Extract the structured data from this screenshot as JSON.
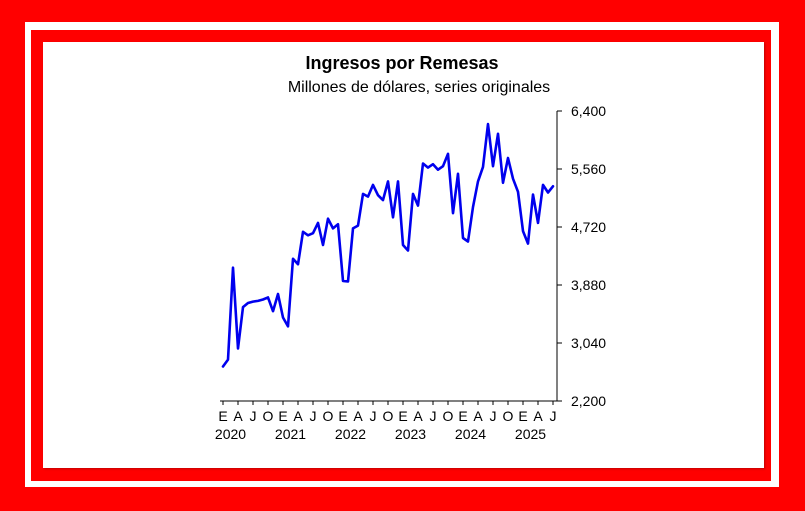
{
  "chart_data": {
    "type": "line",
    "title": "Ingresos por Remesas",
    "subtitle": "Millones de dólares, series originales",
    "xlabel": "",
    "ylabel": "",
    "ylim": [
      2200,
      6400
    ],
    "y_ticks": [
      "2,200",
      "3,040",
      "3,880",
      "4,720",
      "5,560",
      "6,400"
    ],
    "y_tick_values": [
      2200,
      3040,
      3880,
      4720,
      5560,
      6400
    ],
    "y_axis_position": "right",
    "grid": false,
    "legend": "none",
    "line_color": "#0000ee",
    "x_tick_labels": [
      "E",
      "A",
      "J",
      "O",
      "E",
      "A",
      "J",
      "O",
      "E",
      "A",
      "J",
      "O",
      "E",
      "A",
      "J",
      "O",
      "E",
      "A",
      "J",
      "O",
      "E",
      "A",
      "J"
    ],
    "x_year_labels": [
      "2020",
      "2021",
      "2022",
      "2023",
      "2024",
      "2025"
    ],
    "x_start": "2020-01",
    "series": [
      {
        "values": [
          2700,
          2800,
          4130,
          2960,
          3560,
          3620,
          3640,
          3650,
          3670,
          3700,
          3500,
          3750,
          3410,
          3280,
          4260,
          4180,
          4650,
          4600,
          4630,
          4780,
          4460,
          4840,
          4700,
          4760,
          3940,
          3930,
          4700,
          4740,
          5200,
          5160,
          5330,
          5180,
          5110,
          5380,
          4860,
          5380,
          4460,
          4380,
          5200,
          5030,
          5640,
          5580,
          5630,
          5550,
          5600,
          5780,
          4920,
          5490,
          4560,
          4510,
          5010,
          5380,
          5590,
          6210,
          5600,
          6070,
          5360,
          5720,
          5420,
          5230,
          4660,
          4480,
          5190,
          4780,
          5330,
          5220,
          5310
        ]
      }
    ]
  }
}
